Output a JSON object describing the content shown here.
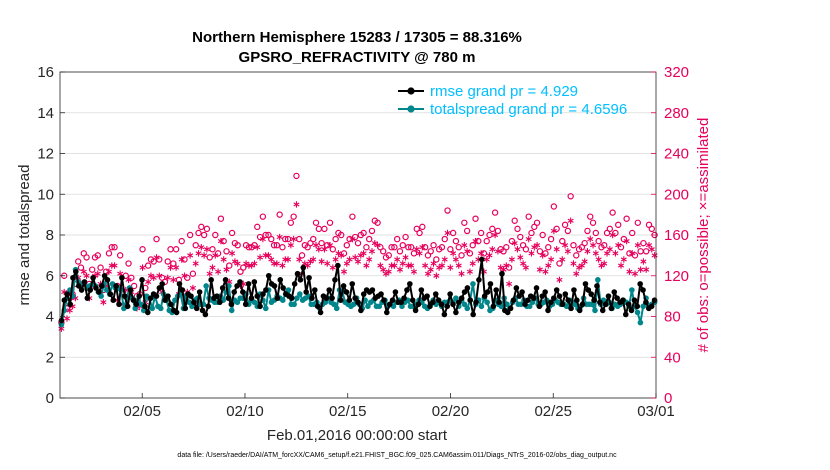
{
  "chart_data": {
    "type": "line",
    "title": "Northern Hemisphere 15283 / 17305 = 88.316%",
    "subtitle": "GPSRO_REFRACTIVITY @ 780 m",
    "xlabel": "Feb.01,2016 00:00:00 start",
    "ylabel": "rmse and totalspread",
    "y2label": "# of obs: o=possible; ×=assimilated",
    "footnote": "data file: /Users/raeder/DAI/ATM_forcXX/CAM6_setup/f.e21.FHIST_BGC.f09_025.CAM6assim.011/Diags_NTrS_2016-02/obs_diag_output.nc",
    "xlim": [
      1,
      30
    ],
    "ylim": [
      0,
      16
    ],
    "y2lim": [
      0,
      320
    ],
    "x_ticks": [
      5,
      10,
      15,
      20,
      25,
      30
    ],
    "x_tick_labels": [
      "02/05",
      "02/10",
      "02/15",
      "02/20",
      "02/25",
      "03/01"
    ],
    "y_ticks": [
      0,
      2,
      4,
      6,
      8,
      10,
      12,
      14,
      16
    ],
    "y2_ticks": [
      0,
      40,
      80,
      120,
      160,
      200,
      240,
      280,
      320
    ],
    "legend_position": "top-right",
    "colors": {
      "rmse": "#000000",
      "spread": "#00868b",
      "obs": "#e6005c"
    },
    "series": [
      {
        "name": "rmse grand pr = 4.929",
        "color": "#000000",
        "values": [
          3.8,
          4.8,
          5.1,
          4.6,
          5.9,
          6.2,
          5.5,
          5.3,
          5.7,
          4.9,
          5.3,
          5.9,
          5.4,
          5.2,
          5.5,
          6.0,
          5.8,
          5.1,
          4.8,
          5.5,
          4.6,
          5.9,
          5.0,
          4.5,
          5.3,
          4.8,
          4.6,
          5.0,
          5.8,
          4.5,
          4.2,
          4.9,
          5.1,
          5.0,
          5.4,
          5.6,
          4.8,
          5.0,
          4.6,
          4.3,
          4.2,
          5.6,
          5.3,
          4.4,
          5.1,
          5.0,
          4.7,
          4.4,
          5.2,
          4.3,
          4.1,
          4.5,
          5.8,
          4.9,
          5.0,
          4.7,
          5.4,
          5.8,
          4.9,
          4.6,
          5.2,
          5.5,
          5.7,
          5.2,
          4.6,
          5.6,
          4.9,
          5.7,
          5.0,
          4.5,
          5.1,
          5.3,
          6.0,
          5.6,
          5.5,
          4.9,
          5.8,
          5.4,
          5.1,
          5.0,
          4.9,
          5.6,
          6.1,
          5.8,
          6.4,
          5.2,
          5.9,
          4.9,
          5.3,
          4.5,
          4.2,
          5.0,
          4.9,
          5.3,
          4.9,
          5.8,
          6.5,
          4.8,
          5.5,
          5.2,
          4.8,
          5.6,
          4.9,
          4.7,
          4.3,
          5.1,
          5.3,
          5.2,
          5.3,
          4.9,
          5.0,
          5.1,
          4.8,
          4.2,
          4.6,
          4.8,
          5.2,
          4.7,
          4.7,
          4.9,
          5.3,
          5.6,
          4.8,
          4.3,
          4.6,
          5.3,
          4.9,
          5.0,
          4.5,
          4.7,
          5.1,
          4.8,
          4.6,
          4.1,
          4.5,
          5.1,
          4.6,
          4.2,
          4.7,
          4.9,
          5.2,
          5.4,
          4.8,
          4.1,
          4.7,
          5.8,
          6.8,
          5.0,
          5.2,
          5.6,
          4.5,
          5.3,
          4.7,
          6.1,
          4.3,
          4.2,
          4.4,
          4.8,
          5.4,
          5.0,
          5.2,
          4.6,
          4.8,
          5.0,
          4.9,
          5.4,
          4.5,
          5.0,
          5.2,
          4.3,
          4.7,
          4.9,
          5.3,
          5.0,
          4.6,
          5.1,
          4.8,
          4.4,
          5.3,
          4.8,
          4.3,
          4.6,
          5.6,
          5.3,
          5.1,
          4.8,
          5.5,
          4.7,
          4.3,
          4.6,
          5.0,
          4.4,
          5.2,
          4.9,
          4.7,
          4.8,
          4.1,
          4.6,
          4.3,
          4.8,
          4.5,
          5.6,
          5.3,
          4.7,
          4.4,
          4.5,
          4.8
        ],
        "marker": "filled-circle"
      },
      {
        "name": "totalspread grand pr = 4.6596",
        "color": "#00868b",
        "values": [
          3.6,
          4.3,
          4.9,
          5.3,
          5.0,
          6.3,
          5.7,
          5.5,
          5.6,
          5.4,
          5.5,
          5.6,
          5.5,
          5.2,
          5.0,
          5.6,
          5.3,
          5.1,
          5.6,
          5.4,
          5.4,
          5.3,
          4.4,
          4.9,
          5.4,
          4.9,
          4.4,
          4.8,
          4.6,
          4.3,
          5.0,
          4.9,
          4.4,
          5.0,
          4.5,
          4.4,
          5.1,
          4.8,
          4.3,
          4.2,
          4.8,
          5.0,
          5.1,
          4.4,
          5.0,
          4.7,
          4.5,
          4.8,
          4.9,
          4.6,
          4.6,
          5.5,
          4.9,
          4.8,
          4.7,
          4.7,
          5.0,
          4.8,
          5.2,
          5.5,
          4.3,
          4.8,
          4.7,
          4.9,
          4.9,
          5.1,
          4.6,
          4.8,
          4.7,
          4.5,
          5.1,
          4.8,
          4.4,
          5.3,
          4.7,
          4.8,
          5.0,
          4.9,
          4.8,
          5.1,
          5.3,
          4.6,
          4.6,
          4.9,
          5.1,
          4.8,
          4.9,
          5.0,
          4.6,
          4.6,
          4.7,
          4.4,
          4.6,
          4.7,
          4.9,
          4.7,
          4.6,
          4.4,
          5.3,
          5.2,
          4.7,
          4.6,
          4.5,
          4.6,
          4.9,
          4.6,
          4.4,
          4.8,
          4.5,
          4.7,
          4.8,
          4.5,
          4.5,
          4.7,
          4.8,
          4.5,
          4.6,
          4.5,
          4.7,
          4.8,
          4.5,
          4.7,
          4.8,
          4.5,
          4.5,
          4.6,
          4.8,
          4.7,
          4.5,
          4.4,
          4.6,
          4.8,
          4.6,
          4.7,
          4.5,
          4.7,
          4.7,
          4.8,
          4.7,
          4.9,
          4.5,
          4.8,
          4.6,
          4.4,
          4.8,
          5.6,
          4.6,
          4.8,
          4.5,
          4.9,
          4.7,
          4.3,
          4.4,
          4.8,
          4.6,
          4.5,
          4.9,
          4.6,
          4.4,
          4.7,
          4.9,
          4.6,
          4.6,
          4.8,
          4.5,
          4.5,
          4.7,
          4.9,
          4.6,
          4.6,
          4.7,
          4.8,
          4.5,
          4.6,
          4.8,
          4.7,
          4.6,
          4.6,
          4.5,
          4.8,
          4.7,
          4.6,
          4.4,
          4.5,
          4.9,
          4.6,
          4.6,
          4.6,
          4.3,
          5.8,
          4.6,
          4.8,
          4.6,
          4.7,
          4.4,
          4.6,
          4.5,
          4.6,
          4.8,
          4.7,
          4.5,
          5.3,
          4.5,
          4.2,
          3.7,
          4.5,
          4.9,
          4.5,
          4.6,
          4.7
        ],
        "marker": "filled-circle"
      },
      {
        "name": "possible",
        "color": "#e6005c",
        "axis": "right",
        "values": [
          74,
          120,
          88,
          98,
          102,
          112,
          134,
          128,
          142,
          138,
          112,
          126,
          138,
          140,
          128,
          106,
          124,
          142,
          148,
          148,
          110,
          140,
          104,
          120,
          132,
          118,
          110,
          100,
          102,
          146,
          108,
          130,
          136,
          134,
          156,
          136,
          118,
          114,
          134,
          146,
          132,
          146,
          116,
          154,
          136,
          118,
          160,
          122,
          150,
          162,
          168,
          160,
          166,
          138,
          146,
          160,
          142,
          176,
          154,
          144,
          130,
          162,
          152,
          150,
          124,
          128,
          150,
          148,
          148,
          150,
          168,
          158,
          178,
          160,
          160,
          156,
          150,
          150,
          180,
          148,
          156,
          156,
          172,
          178,
          218,
          156,
          140,
          150,
          148,
          152,
          156,
          172,
          166,
          152,
          166,
          150,
          172,
          146,
          156,
          162,
          160,
          142,
          150,
          156,
          178,
          158,
          152,
          160,
          162,
          148,
          156,
          164,
          174,
          172,
          148,
          144,
          138,
          140,
          148,
          148,
          156,
          144,
          150,
          158,
          148,
          148,
          142,
          166,
          162,
          168,
          148,
          140,
          144,
          150,
          136,
          146,
          148,
          156,
          184,
          146,
          162,
          154,
          148,
          140,
          172,
          164,
          142,
          150,
          176,
          154,
          162,
          142,
          154,
          160,
          166,
          182,
          164,
          146,
          144,
          148,
          128,
          154,
          174,
          166,
          158,
          150,
          146,
          178,
          162,
          168,
          172,
          144,
          160,
          142,
          148,
          156,
          188,
          166,
          132,
          154,
          170,
          164,
          198,
          150,
          140,
          146,
          148,
          152,
          164,
          178,
          172,
          162,
          154,
          148,
          150,
          162,
          166,
          182,
          162,
          170,
          148,
          156,
          176,
          142,
          162,
          140,
          172,
          144,
          152,
          144,
          170,
          166,
          160
        ],
        "marker": "open-circle"
      },
      {
        "name": "assimilated",
        "color": "#e6005c",
        "axis": "right",
        "values": [
          68,
          104,
          78,
          86,
          90,
          98,
          118,
          112,
          124,
          120,
          98,
          110,
          120,
          122,
          112,
          94,
          110,
          124,
          130,
          130,
          96,
          122,
          92,
          106,
          116,
          104,
          96,
          88,
          90,
          128,
          94,
          114,
          120,
          118,
          138,
          120,
          104,
          100,
          118,
          128,
          116,
          128,
          102,
          136,
          120,
          104,
          140,
          108,
          132,
          142,
          148,
          140,
          146,
          122,
          128,
          140,
          124,
          154,
          136,
          126,
          114,
          142,
          134,
          132,
          110,
          112,
          132,
          130,
          130,
          132,
          148,
          138,
          156,
          140,
          140,
          136,
          132,
          132,
          158,
          130,
          136,
          136,
          150,
          156,
          190,
          136,
          122,
          132,
          130,
          134,
          136,
          150,
          146,
          134,
          146,
          132,
          150,
          128,
          136,
          142,
          140,
          124,
          132,
          136,
          156,
          138,
          134,
          140,
          142,
          130,
          136,
          144,
          152,
          150,
          130,
          126,
          122,
          124,
          130,
          130,
          136,
          126,
          132,
          138,
          130,
          130,
          124,
          146,
          142,
          148,
          130,
          122,
          126,
          132,
          120,
          128,
          130,
          136,
          162,
          128,
          142,
          136,
          130,
          122,
          150,
          144,
          124,
          132,
          154,
          136,
          142,
          124,
          136,
          140,
          146,
          160,
          144,
          128,
          126,
          130,
          112,
          136,
          152,
          146,
          138,
          132,
          128,
          156,
          142,
          148,
          150,
          126,
          140,
          124,
          130,
          136,
          164,
          146,
          116,
          136,
          150,
          144,
          174,
          132,
          122,
          128,
          130,
          134,
          144,
          156,
          150,
          142,
          136,
          130,
          132,
          142,
          146,
          160,
          142,
          150,
          130,
          136,
          154,
          124,
          142,
          122,
          150,
          126,
          134,
          126,
          150,
          146,
          140
        ],
        "marker": "asterisk"
      }
    ]
  }
}
